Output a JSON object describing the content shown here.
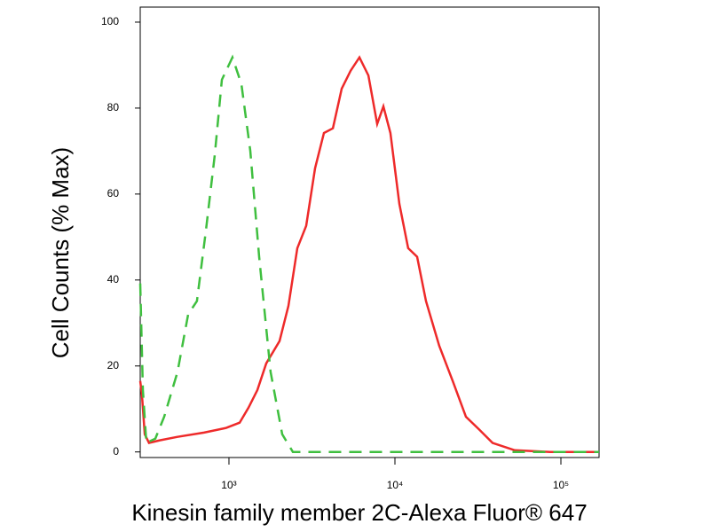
{
  "chart_data": {
    "type": "line",
    "xlabel": "Kinesin family member 2C-Alexa Fluor® 647",
    "ylabel": "Cell Counts (% Max)",
    "xscale": "log",
    "xlim": [
      292,
      169800
    ],
    "xticks": [
      {
        "value": 1000,
        "label": "10³"
      },
      {
        "value": 10000,
        "label": "10⁴"
      },
      {
        "value": 100000,
        "label": "10⁵"
      }
    ],
    "ylim": [
      -1.3,
      103.5
    ],
    "yticks": [
      0,
      20,
      40,
      60,
      80,
      100
    ],
    "series": [
      {
        "color": "#ee2a2a",
        "style": "solid",
        "x": [
          292,
          299,
          311,
          330,
          383,
          490,
          708,
          963,
          1159,
          1311,
          1483,
          1678,
          2019,
          2282,
          2582,
          2920,
          3304,
          3735,
          4227,
          4780,
          5408,
          6113,
          6918,
          7819,
          8518,
          9397,
          10640,
          12020,
          13610,
          15380,
          18490,
          22280,
          26790,
          32210,
          38730,
          52720,
          86300,
          169800
        ],
        "values": [
          16.5,
          13.4,
          4.1,
          2.1,
          2.7,
          3.5,
          4.5,
          5.6,
          6.8,
          10.3,
          14.4,
          20.6,
          25.8,
          34.0,
          47.4,
          52.6,
          66.0,
          74.2,
          75.3,
          84.5,
          88.7,
          91.8,
          87.6,
          76.3,
          80.4,
          74.2,
          57.7,
          47.4,
          45.4,
          35.1,
          24.7,
          16.5,
          8.2,
          5.2,
          2.1,
          0.4,
          0,
          0
        ]
      },
      {
        "color": "#3fbf3f",
        "style": "dashed",
        "x": [
          292,
          303,
          318,
          360,
          407,
          490,
          568,
          641,
          726,
          821,
          906,
          1050,
          1188,
          1344,
          1520,
          1783,
          2093,
          2427,
          5740,
          169800
        ],
        "values": [
          39.2,
          14.4,
          2.1,
          3.1,
          8.2,
          18.6,
          32.0,
          35.1,
          51.5,
          69.1,
          86.6,
          91.8,
          85.6,
          70.1,
          45.4,
          18.6,
          4.1,
          0,
          0,
          0
        ]
      }
    ]
  }
}
